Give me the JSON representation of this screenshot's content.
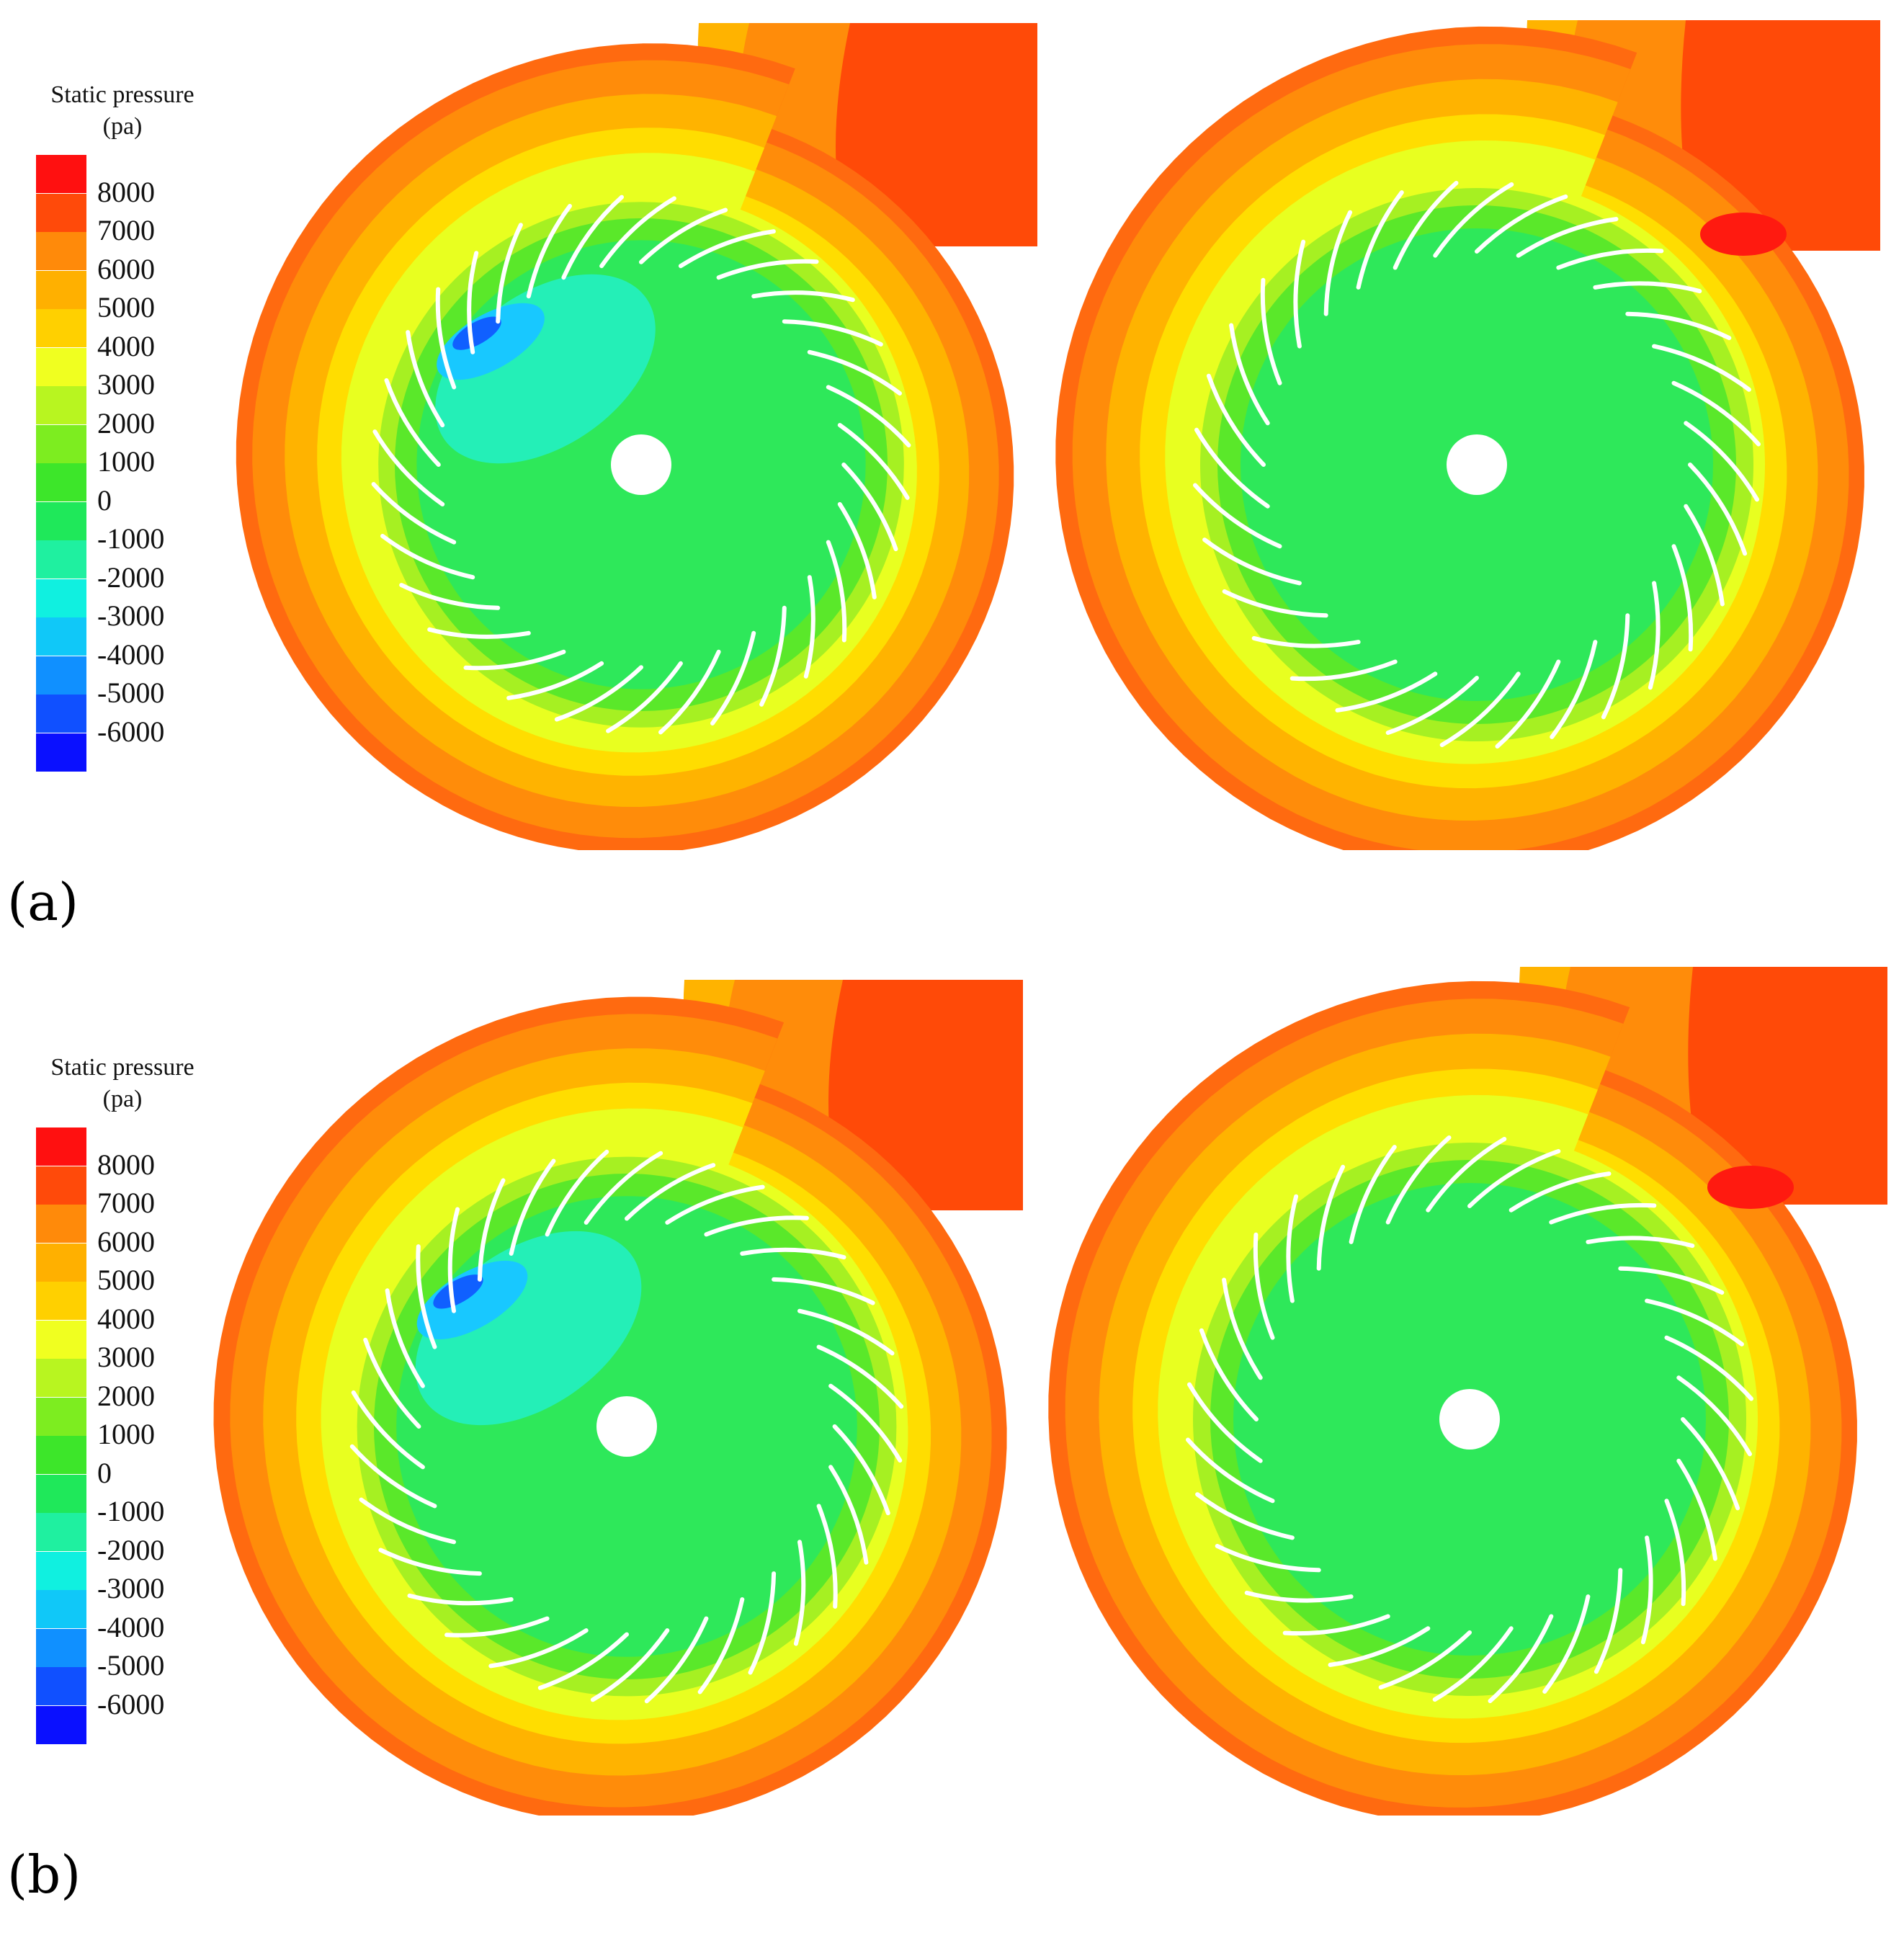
{
  "panels": [
    {
      "label": "(a)"
    },
    {
      "label": "(b)"
    }
  ],
  "legend": {
    "title_line1": "Static pressure",
    "title_line2": "(pa)",
    "ticks": [
      "8000",
      "7000",
      "6000",
      "5000",
      "4000",
      "3000",
      "2000",
      "1000",
      "0",
      "-1000",
      "-2000",
      "-3000",
      "-4000",
      "-5000",
      "-6000"
    ],
    "colors": [
      "#ff1010",
      "#ff4a0a",
      "#ff8a0a",
      "#ffb000",
      "#ffd000",
      "#f0ff20",
      "#b8f520",
      "#7ded20",
      "#3de62a",
      "#1fe85a",
      "#1ff0a0",
      "#10f0e0",
      "#10c8f8",
      "#1090ff",
      "#1050ff",
      "#0a10ff"
    ]
  },
  "colors": {
    "outer": "#ff6a10",
    "orange": "#ff8c0a",
    "amber": "#ffb300",
    "yellow": "#ffdd00",
    "lime": "#e8ff20",
    "ygreen": "#a6f022",
    "green": "#5ae82a",
    "core": "#2ee85a",
    "cyan": "#22f0c8",
    "lightblue": "#18c8ff",
    "blue": "#1060ff",
    "outlet": "#ff4a08",
    "hot": "#ff1a10"
  }
}
